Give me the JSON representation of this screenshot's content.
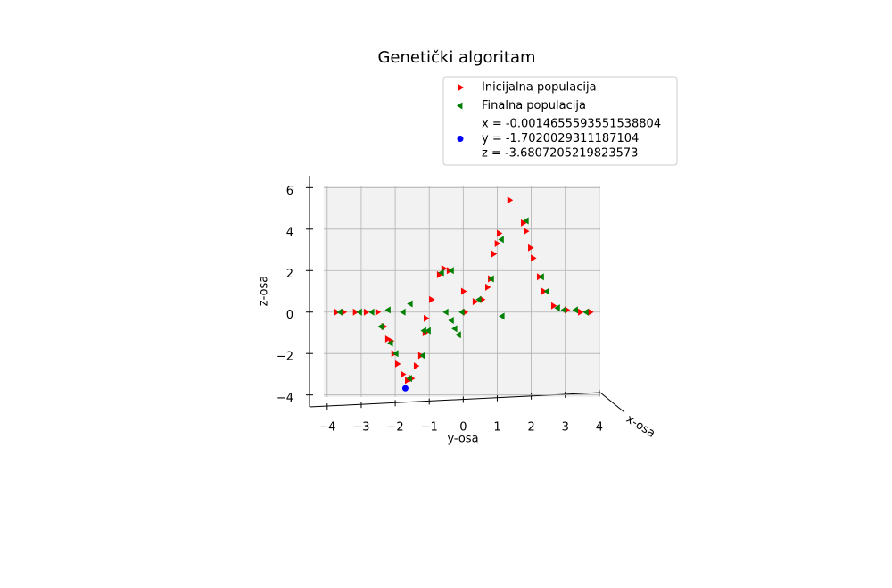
{
  "chart_data": {
    "type": "scatter",
    "title": "Genetički algoritam",
    "x_label": "y-osa",
    "y_label": "z-osa",
    "depth_label": "x-osa",
    "xlim": [
      -4.1,
      4.03
    ],
    "ylim": [
      -4.1,
      6.1
    ],
    "xticks": [
      {
        "value": -4,
        "label": "−4"
      },
      {
        "value": -3,
        "label": "−3"
      },
      {
        "value": -2,
        "label": "−2"
      },
      {
        "value": -1,
        "label": "−1"
      },
      0,
      1,
      2,
      3,
      4
    ],
    "yticks": [
      {
        "value": -4,
        "label": "−4"
      },
      {
        "value": -2,
        "label": "−2"
      },
      0,
      2,
      4,
      6
    ],
    "grid": true,
    "legend": "upper right",
    "series": [
      {
        "name": [
          "Inicijalna populacija"
        ],
        "color": "#ff0000",
        "marker": "triangle-right",
        "x": [
          -3.73,
          -3.52,
          -3.18,
          -2.86,
          -2.52,
          -2.34,
          -2.23,
          -2.13,
          -2.05,
          -1.94,
          -1.78,
          -1.65,
          -1.52,
          -1.39,
          -1.26,
          -1.13,
          -1.1,
          -0.94,
          -0.71,
          -0.58,
          -0.42,
          0,
          0.05,
          0.34,
          0.55,
          0.71,
          0.79,
          0.89,
          0.99,
          1.05,
          1.36,
          1.76,
          1.84,
          1.97,
          2.05,
          2.23,
          2.36,
          2.65,
          3.04,
          3.44,
          3.73
        ],
        "values": [
          0,
          0,
          0,
          0,
          0,
          -0.7,
          -1.3,
          -1.4,
          -2.0,
          -2.5,
          -3.0,
          -3.3,
          -3.2,
          -2.6,
          -2.1,
          -1.0,
          -0.3,
          0.6,
          1.8,
          2.1,
          2.0,
          1.0,
          0,
          0.5,
          0.6,
          1.2,
          1.6,
          2.8,
          3.3,
          3.8,
          5.4,
          4.3,
          3.9,
          3.1,
          2.6,
          1.7,
          1.0,
          0.3,
          0.1,
          0,
          0
        ]
      },
      {
        "name": [
          "Finalna populacija"
        ],
        "color": "#008000",
        "marker": "triangle-left",
        "x": [
          -3.62,
          -3.04,
          -2.68,
          -2.2,
          -2.41,
          -2.13,
          -1.97,
          -1.76,
          -1.55,
          -1.15,
          -1.02,
          -1.18,
          -1.57,
          -0.63,
          -0.34,
          -0.5,
          -0.34,
          -0.24,
          -0.13,
          -0.03,
          0.47,
          0.84,
          1.13,
          1.15,
          1.86,
          2.31,
          2.47,
          2.78,
          2.97,
          3.31,
          3.62
        ],
        "values": [
          0,
          0,
          0,
          0.1,
          -0.7,
          -1.5,
          -2.0,
          0,
          0.4,
          -0.9,
          -0.9,
          -2.1,
          -3.2,
          1.9,
          2.0,
          0,
          -0.4,
          -0.8,
          -1.1,
          0,
          0.6,
          1.6,
          3.5,
          -0.2,
          4.4,
          1.7,
          1.0,
          0.2,
          0.1,
          0.1,
          0
        ]
      },
      {
        "name": [
          "x = -0.0014655593551538804",
          "y = -1.7020029311187104",
          "z = -3.6807205219823573"
        ],
        "color": "#0000ff",
        "marker": "circle",
        "x": [
          -1.7020029311187104
        ],
        "values": [
          -3.6807205219823573
        ]
      }
    ]
  }
}
